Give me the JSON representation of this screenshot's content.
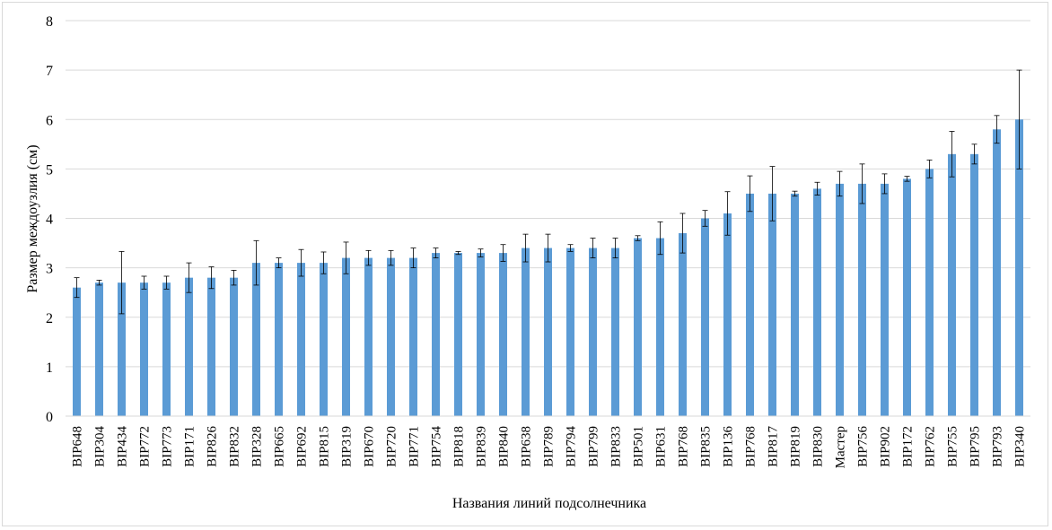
{
  "chart_data": {
    "type": "bar",
    "title": "",
    "xlabel": "Названия линий подсолнечника",
    "ylabel": "Размер междоузлия (см)",
    "ylim": [
      0,
      8
    ],
    "yticks": [
      0,
      1,
      2,
      3,
      4,
      5,
      6,
      7,
      8
    ],
    "grid": true,
    "legend": "none",
    "bar_color": "#5b9bd5",
    "error_bar_color": "#000000",
    "categories": [
      "ВIP648",
      "ВIP304",
      "ВIP434",
      "ВIP772",
      "ВIP773",
      "ВIP171",
      "ВIP826",
      "ВIP832",
      "ВIP328",
      "ВIP665",
      "ВIP692",
      "ВIP815",
      "ВIP319",
      "ВIP670",
      "ВIP720",
      "ВIP771",
      "ВIP754",
      "ВIP818",
      "ВIP839",
      "ВIP840",
      "ВIP638",
      "ВIP789",
      "ВIP794",
      "ВIP799",
      "ВIP833",
      "ВIP501",
      "ВIP631",
      "ВIP768",
      "ВIP835",
      "ВIP136",
      "ВIP768",
      "ВIP817",
      "ВIP819",
      "ВIP830",
      "Мастер",
      "ВIP756",
      "ВIP902",
      "ВIP172",
      "ВIP762",
      "ВIP755",
      "ВIP795",
      "ВIP793",
      "ВIP340"
    ],
    "values": [
      2.6,
      2.7,
      2.7,
      2.7,
      2.7,
      2.8,
      2.8,
      2.8,
      3.1,
      3.1,
      3.1,
      3.1,
      3.2,
      3.2,
      3.2,
      3.2,
      3.3,
      3.3,
      3.3,
      3.3,
      3.4,
      3.4,
      3.4,
      3.4,
      3.4,
      3.6,
      3.6,
      3.7,
      4.0,
      4.1,
      4.5,
      4.5,
      4.5,
      4.6,
      4.7,
      4.7,
      4.7,
      4.8,
      5.0,
      5.3,
      5.3,
      5.8,
      6.0
    ],
    "errors": [
      0.2,
      0.05,
      0.63,
      0.13,
      0.13,
      0.3,
      0.22,
      0.15,
      0.45,
      0.1,
      0.27,
      0.22,
      0.32,
      0.15,
      0.15,
      0.2,
      0.1,
      0.03,
      0.08,
      0.17,
      0.28,
      0.28,
      0.07,
      0.2,
      0.2,
      0.05,
      0.33,
      0.4,
      0.16,
      0.44,
      0.36,
      0.55,
      0.05,
      0.13,
      0.25,
      0.4,
      0.2,
      0.05,
      0.18,
      0.46,
      0.2,
      0.28,
      1.0
    ]
  }
}
